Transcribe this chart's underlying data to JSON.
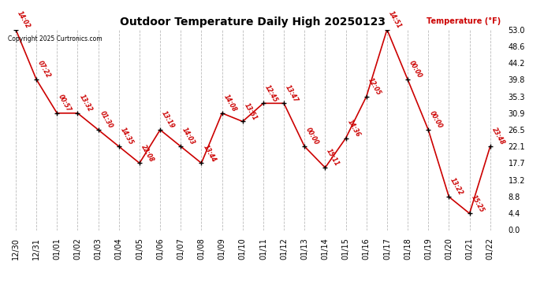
{
  "title": "Outdoor Temperature Daily High 20250123",
  "ylabel_text": "Temperature (°F)",
  "copyright": "Copyright 2025 Curtronics.com",
  "dates": [
    "12/30",
    "12/31",
    "01/01",
    "01/02",
    "01/03",
    "01/04",
    "01/05",
    "01/06",
    "01/07",
    "01/08",
    "01/09",
    "01/10",
    "01/11",
    "01/12",
    "01/13",
    "01/14",
    "01/15",
    "01/16",
    "01/17",
    "01/18",
    "01/19",
    "01/20",
    "01/21",
    "01/22"
  ],
  "values": [
    53.0,
    39.8,
    30.9,
    30.9,
    26.5,
    22.1,
    17.7,
    26.5,
    22.1,
    17.7,
    30.9,
    28.7,
    33.5,
    33.5,
    22.1,
    16.5,
    24.3,
    35.3,
    53.0,
    39.8,
    26.5,
    8.8,
    4.4,
    22.1
  ],
  "times": [
    "14:02",
    "07:22",
    "00:57",
    "13:32",
    "01:30",
    "14:35",
    "22:08",
    "13:19",
    "14:03",
    "13:44",
    "14:08",
    "13:51",
    "12:45",
    "13:47",
    "00:00",
    "15:11",
    "14:36",
    "12:05",
    "14:51",
    "00:00",
    "00:00",
    "13:22",
    "15:25",
    "23:48"
  ],
  "ylim_min": 0.0,
  "ylim_max": 53.0,
  "yticks": [
    0.0,
    4.4,
    8.8,
    13.2,
    17.7,
    22.1,
    26.5,
    30.9,
    35.3,
    39.8,
    44.2,
    48.6,
    53.0
  ],
  "line_color": "#cc0000",
  "marker_color": "#000000",
  "bg_color": "#ffffff",
  "grid_color": "#bbbbbb",
  "title_color": "#000000",
  "label_color": "#cc0000",
  "copyright_color": "#000000"
}
